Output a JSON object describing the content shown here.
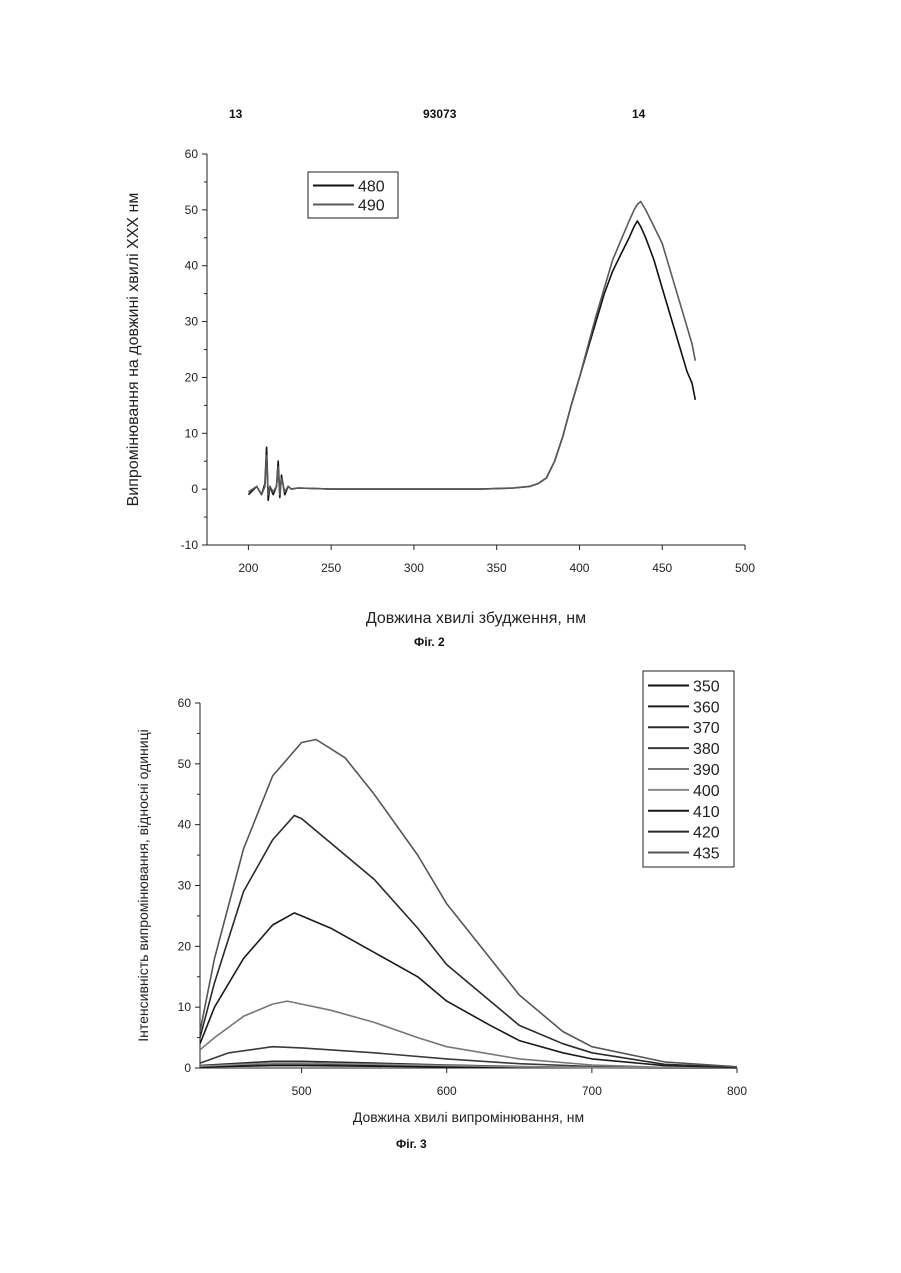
{
  "header": {
    "left": "13",
    "center": "93073",
    "right": "14"
  },
  "captions": {
    "fig2": "Фіг. 2",
    "fig3": "Фіг. 3"
  },
  "chart_data": [
    {
      "type": "line",
      "caption": "Фіг. 2",
      "xlabel": "Довжина хвилі збудження, нм",
      "ylabel": "Випромінювання на довжині хвилі  ХХХ нм",
      "xlim": [
        175,
        500
      ],
      "ylim": [
        -10,
        60
      ],
      "xticks": [
        200,
        250,
        300,
        350,
        400,
        450,
        500
      ],
      "yticks": [
        -10,
        0,
        10,
        20,
        30,
        40,
        50,
        60
      ],
      "legend_position": "top-left",
      "grid": false,
      "series": [
        {
          "name": "480",
          "color": "#111111",
          "x": [
            200,
            205,
            208,
            210,
            211,
            212,
            213,
            215,
            217,
            218,
            219,
            220,
            222,
            224,
            226,
            230,
            250,
            300,
            340,
            360,
            370,
            375,
            380,
            385,
            390,
            395,
            400,
            405,
            410,
            415,
            420,
            425,
            430,
            433,
            435,
            437,
            440,
            445,
            450,
            455,
            460,
            465,
            468,
            470
          ],
          "y": [
            -1,
            0.5,
            -1,
            1,
            7.5,
            -2,
            0.5,
            -1,
            0.5,
            5,
            -1.5,
            2.5,
            -1,
            0.5,
            0,
            0.2,
            0,
            0,
            0,
            0.2,
            0.5,
            1,
            2,
            5,
            9.5,
            15,
            20,
            25,
            30,
            35,
            39,
            42,
            45,
            47,
            48,
            47,
            45,
            41,
            36,
            31,
            26,
            21,
            19,
            16
          ]
        },
        {
          "name": "490",
          "color": "#5a5a5a",
          "x": [
            200,
            205,
            208,
            210,
            211,
            212,
            213,
            215,
            217,
            218,
            219,
            220,
            222,
            224,
            226,
            230,
            250,
            300,
            340,
            360,
            370,
            375,
            380,
            385,
            390,
            395,
            400,
            405,
            410,
            415,
            420,
            425,
            430,
            433,
            435,
            437,
            440,
            445,
            450,
            455,
            460,
            465,
            468,
            470
          ],
          "y": [
            -0.5,
            0.5,
            -1,
            0.5,
            6,
            -1,
            0.5,
            -0.5,
            0.5,
            4,
            -1,
            2,
            -0.5,
            0.5,
            0,
            0.2,
            0,
            0,
            0,
            0.2,
            0.5,
            1,
            2,
            5,
            9.5,
            15,
            20,
            25.5,
            31,
            36,
            41,
            44.5,
            48,
            50,
            51,
            51.5,
            50,
            47,
            44,
            39,
            34,
            29,
            26,
            23
          ]
        }
      ]
    },
    {
      "type": "line",
      "caption": "Фіг. 3",
      "xlabel": "Довжина хвилі випромінювання, нм",
      "ylabel": "Інтенсивність випромінювання, відносні одиниці",
      "xlim": [
        430,
        800
      ],
      "ylim": [
        0,
        60
      ],
      "xticks": [
        500,
        600,
        700,
        800
      ],
      "yticks": [
        0,
        10,
        20,
        30,
        40,
        50,
        60
      ],
      "legend_position": "top-right",
      "grid": false,
      "series": [
        {
          "name": "350",
          "color": "#111111",
          "x": [
            430,
            480,
            500,
            550,
            600,
            650,
            700,
            750,
            800
          ],
          "y": [
            0.2,
            0.4,
            0.4,
            0.3,
            0.2,
            0.1,
            0.05,
            0.02,
            0
          ]
        },
        {
          "name": "360",
          "color": "#1e1e1e",
          "x": [
            430,
            480,
            500,
            550,
            600,
            650,
            700,
            750,
            800
          ],
          "y": [
            0.3,
            0.7,
            0.7,
            0.5,
            0.3,
            0.15,
            0.05,
            0.02,
            0
          ]
        },
        {
          "name": "370",
          "color": "#2c2c2c",
          "x": [
            430,
            480,
            500,
            550,
            600,
            650,
            700,
            750,
            800
          ],
          "y": [
            0.4,
            1.1,
            1.1,
            0.8,
            0.5,
            0.25,
            0.1,
            0.03,
            0
          ]
        },
        {
          "name": "380",
          "color": "#3a3a3a",
          "x": [
            430,
            450,
            480,
            500,
            550,
            600,
            650,
            700,
            750,
            800
          ],
          "y": [
            0.8,
            2.5,
            3.5,
            3.3,
            2.5,
            1.5,
            0.7,
            0.25,
            0.05,
            0
          ]
        },
        {
          "name": "390",
          "color": "#777777",
          "x": [
            430,
            440,
            460,
            480,
            490,
            500,
            520,
            550,
            580,
            600,
            650,
            700,
            750,
            800
          ],
          "y": [
            3,
            5,
            8.5,
            10.5,
            11,
            10.5,
            9.5,
            7.5,
            5,
            3.5,
            1.5,
            0.5,
            0.1,
            0
          ]
        },
        {
          "name": "400",
          "color": "#888888",
          "x": [
            430,
            480,
            500,
            550,
            600,
            650,
            700,
            750,
            800
          ],
          "y": [
            0.3,
            0.8,
            0.8,
            0.6,
            0.4,
            0.2,
            0.1,
            0.02,
            0
          ]
        },
        {
          "name": "410",
          "color": "#1a1a1a",
          "x": [
            430,
            440,
            460,
            480,
            495,
            500,
            520,
            550,
            580,
            600,
            630,
            650,
            680,
            700,
            750,
            800
          ],
          "y": [
            4,
            10,
            18,
            23.5,
            25.5,
            25,
            23,
            19,
            15,
            11,
            7,
            4.5,
            2.5,
            1.5,
            0.4,
            0.1
          ]
        },
        {
          "name": "420",
          "color": "#2a2a2a",
          "x": [
            430,
            440,
            460,
            480,
            495,
            500,
            520,
            550,
            580,
            600,
            630,
            650,
            680,
            700,
            750,
            800
          ],
          "y": [
            5,
            14,
            29,
            37.5,
            41.5,
            41,
            37,
            31,
            23,
            17,
            11,
            7,
            4,
            2.5,
            0.6,
            0.1
          ]
        },
        {
          "name": "435",
          "color": "#555555",
          "x": [
            430,
            440,
            460,
            480,
            500,
            510,
            530,
            550,
            580,
            600,
            630,
            650,
            680,
            700,
            750,
            800
          ],
          "y": [
            6,
            18,
            36,
            48,
            53.5,
            54,
            51,
            45,
            35,
            27,
            18,
            12,
            6,
            3.5,
            1,
            0.2
          ]
        }
      ]
    }
  ]
}
